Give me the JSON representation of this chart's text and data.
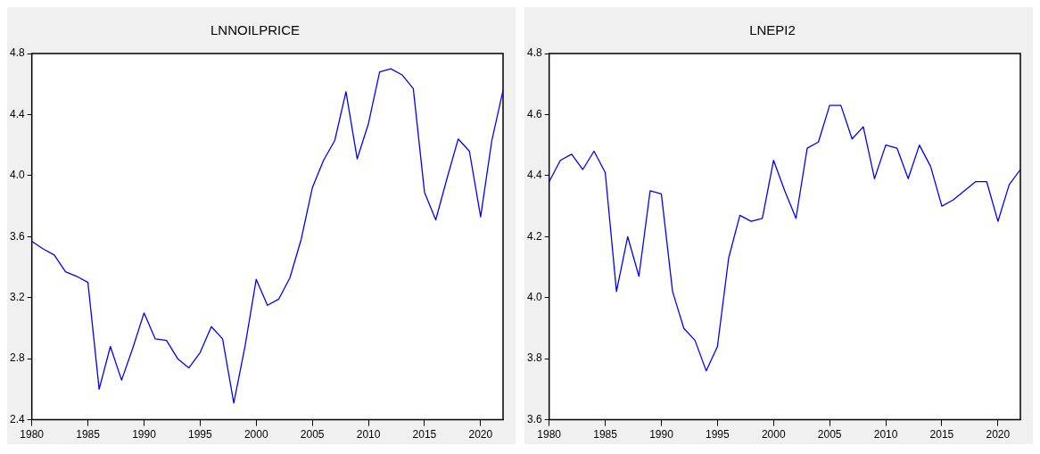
{
  "chart_data": [
    {
      "type": "line",
      "title": "LNNOILPRICE",
      "x": [
        1980,
        1981,
        1982,
        1983,
        1984,
        1985,
        1986,
        1987,
        1988,
        1989,
        1990,
        1991,
        1992,
        1993,
        1994,
        1995,
        1996,
        1997,
        1998,
        1999,
        2000,
        2001,
        2002,
        2003,
        2004,
        2005,
        2006,
        2007,
        2008,
        2009,
        2010,
        2011,
        2012,
        2013,
        2014,
        2015,
        2016,
        2017,
        2018,
        2019,
        2020,
        2021,
        2022
      ],
      "series": [
        {
          "color": "#0000ff",
          "values": [
            3.57,
            3.52,
            3.48,
            3.37,
            3.34,
            3.3,
            2.6,
            2.88,
            2.66,
            2.87,
            3.1,
            2.93,
            2.92,
            2.8,
            2.74,
            2.84,
            3.01,
            2.93,
            2.51,
            2.88,
            3.32,
            3.15,
            3.19,
            3.33,
            3.58,
            3.92,
            4.1,
            4.23,
            4.55,
            4.11,
            4.34,
            4.68,
            4.7,
            4.66,
            4.57,
            3.89,
            3.71,
            3.98,
            4.24,
            4.16,
            3.73,
            4.23,
            4.56
          ]
        }
      ],
      "xlim": [
        1980,
        2022
      ],
      "xticks": [
        1980,
        1985,
        1990,
        1995,
        2000,
        2005,
        2010,
        2015,
        2020
      ],
      "ylim": [
        2.4,
        4.8
      ],
      "yticks": [
        {
          "value": 2.4,
          "label": "2.4"
        },
        {
          "value": 2.8,
          "label": "2.8"
        },
        {
          "value": 3.2,
          "label": "3.2"
        },
        {
          "value": 3.6,
          "label": "3.6"
        },
        {
          "value": 4.0,
          "label": "4.0"
        },
        {
          "value": 4.4,
          "label": "4.4"
        },
        {
          "value": 4.8,
          "label": "4.8"
        }
      ],
      "grid": false,
      "legend": false,
      "marker": "none",
      "line_style": "solid"
    },
    {
      "type": "line",
      "title": "LNEPI2",
      "x": [
        1980,
        1981,
        1982,
        1983,
        1984,
        1985,
        1986,
        1987,
        1988,
        1989,
        1990,
        1991,
        1992,
        1993,
        1994,
        1995,
        1996,
        1997,
        1998,
        1999,
        2000,
        2001,
        2002,
        2003,
        2004,
        2005,
        2006,
        2007,
        2008,
        2009,
        2010,
        2011,
        2012,
        2013,
        2014,
        2015,
        2016,
        2017,
        2018,
        2019,
        2020,
        2021,
        2022
      ],
      "series": [
        {
          "color": "#0000ff",
          "values": [
            4.38,
            4.45,
            4.47,
            4.42,
            4.48,
            4.41,
            4.02,
            4.2,
            4.07,
            4.35,
            4.34,
            4.02,
            3.9,
            3.86,
            3.76,
            3.84,
            4.13,
            4.27,
            4.25,
            4.26,
            4.45,
            4.35,
            4.26,
            4.49,
            4.51,
            4.63,
            4.63,
            4.52,
            4.56,
            4.39,
            4.5,
            4.49,
            4.39,
            4.5,
            4.43,
            4.3,
            4.32,
            4.35,
            4.38,
            4.38,
            4.25,
            4.37,
            4.42
          ]
        }
      ],
      "xlim": [
        1980,
        2022
      ],
      "xticks": [
        1980,
        1985,
        1990,
        1995,
        2000,
        2005,
        2010,
        2015,
        2020
      ],
      "ylim": [
        3.6,
        4.8
      ],
      "yticks": [
        {
          "value": 3.6,
          "label": "3.6"
        },
        {
          "value": 3.8,
          "label": "3.8"
        },
        {
          "value": 4.0,
          "label": "4.0"
        },
        {
          "value": 4.2,
          "label": "4.2"
        },
        {
          "value": 4.4,
          "label": "4.4"
        },
        {
          "value": 4.6,
          "label": "4.6"
        },
        {
          "value": 4.8,
          "label": "4.8"
        }
      ],
      "grid": false,
      "legend": false,
      "marker": "none",
      "line_style": "solid"
    }
  ]
}
